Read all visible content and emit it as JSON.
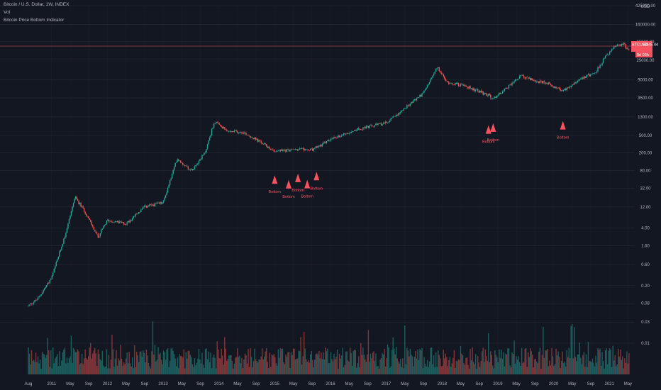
{
  "legend": {
    "symbol_line": "Bitcoin / U.S. Dollar, 1W, INDEX",
    "volume_label": "Vol",
    "indicator_label": "Bitcoin Price Bottom Indicator"
  },
  "price_tag": {
    "symbol": "BTCUSD",
    "price": "40845.44",
    "countdown": "0d 03h"
  },
  "colors": {
    "background": "#131722",
    "grid": "#2a2e39",
    "up": "#26a69a",
    "down": "#ef5350",
    "marker": "#f7525f",
    "text": "#b2b5be"
  },
  "chart_data": {
    "type": "candlestick",
    "title": "Bitcoin / U.S. Dollar, 1W, INDEX",
    "ylabel": "USD",
    "y_scale": "log",
    "grid": true,
    "y_currency_label": "USD",
    "y_ticks": [
      "425000.00",
      "160000.00",
      "65000.00",
      "25000.00",
      "9000.00",
      "3500.00",
      "1300.00",
      "500.00",
      "200.00",
      "80.00",
      "32.00",
      "12.00",
      "4.00",
      "1.60",
      "0.60",
      "0.20",
      "0.08",
      "0.03",
      "0.01"
    ],
    "x_ticks": [
      "Aug",
      "2011",
      "May",
      "Sep",
      "2012",
      "May",
      "Sep",
      "2013",
      "May",
      "Sep",
      "2014",
      "May",
      "Sep",
      "2015",
      "May",
      "Sep",
      "2016",
      "May",
      "Sep",
      "2017",
      "May",
      "Sep",
      "2018",
      "May",
      "Sep",
      "2019",
      "May",
      "Sep",
      "2020",
      "May",
      "Sep",
      "2021",
      "May"
    ],
    "price_path": [
      {
        "date": "2010-08",
        "price": 0.07
      },
      {
        "date": "2010-10",
        "price": 0.1
      },
      {
        "date": "2011-01",
        "price": 0.3
      },
      {
        "date": "2011-04",
        "price": 3
      },
      {
        "date": "2011-06",
        "price": 20
      },
      {
        "date": "2011-08",
        "price": 10
      },
      {
        "date": "2011-11",
        "price": 2.5
      },
      {
        "date": "2012-01",
        "price": 6
      },
      {
        "date": "2012-05",
        "price": 5
      },
      {
        "date": "2012-09",
        "price": 12
      },
      {
        "date": "2013-01",
        "price": 15
      },
      {
        "date": "2013-04",
        "price": 150
      },
      {
        "date": "2013-07",
        "price": 80
      },
      {
        "date": "2013-10",
        "price": 200
      },
      {
        "date": "2013-12",
        "price": 1000
      },
      {
        "date": "2014-03",
        "price": 600
      },
      {
        "date": "2014-06",
        "price": 600
      },
      {
        "date": "2014-09",
        "price": 400
      },
      {
        "date": "2015-01",
        "price": 220
      },
      {
        "date": "2015-06",
        "price": 240
      },
      {
        "date": "2015-09",
        "price": 230
      },
      {
        "date": "2016-01",
        "price": 400
      },
      {
        "date": "2016-06",
        "price": 650
      },
      {
        "date": "2017-01",
        "price": 950
      },
      {
        "date": "2017-06",
        "price": 2500
      },
      {
        "date": "2017-09",
        "price": 4500
      },
      {
        "date": "2017-12",
        "price": 17000
      },
      {
        "date": "2018-02",
        "price": 8000
      },
      {
        "date": "2018-06",
        "price": 6500
      },
      {
        "date": "2018-11",
        "price": 4000
      },
      {
        "date": "2018-12",
        "price": 3300
      },
      {
        "date": "2019-06",
        "price": 11000
      },
      {
        "date": "2019-09",
        "price": 8500
      },
      {
        "date": "2019-12",
        "price": 7200
      },
      {
        "date": "2020-03",
        "price": 5000
      },
      {
        "date": "2020-07",
        "price": 10000
      },
      {
        "date": "2020-10",
        "price": 13000
      },
      {
        "date": "2020-12",
        "price": 28000
      },
      {
        "date": "2021-02",
        "price": 48000
      },
      {
        "date": "2021-04",
        "price": 60000
      },
      {
        "date": "2021-05",
        "price": 40845.44
      }
    ],
    "bottom_signals": [
      {
        "date": "2015-01",
        "label": "Bottom"
      },
      {
        "date": "2015-04",
        "label": "Bottom"
      },
      {
        "date": "2015-06",
        "label": "Bottom"
      },
      {
        "date": "2015-08",
        "label": "Bottom"
      },
      {
        "date": "2015-10",
        "label": "Bottom"
      },
      {
        "date": "2018-11",
        "label": "Bottom"
      },
      {
        "date": "2018-12",
        "label": "Bottom"
      },
      {
        "date": "2020-03",
        "label": "Bottom"
      }
    ]
  }
}
